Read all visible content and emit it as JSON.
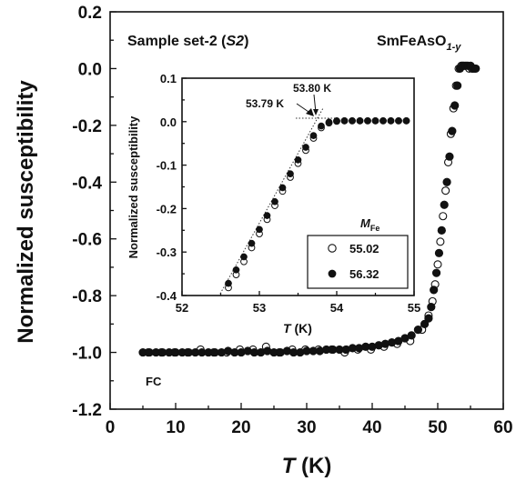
{
  "chart_data": {
    "type": "scatter",
    "title": "SmFeAsO",
    "title_subscript": "1-y",
    "subtitle_prefix": "Sample set-2 (",
    "subtitle_italic": "S2",
    "subtitle_suffix": ")",
    "ylabel": "Normalized susceptibility",
    "xlabel_var": "T",
    "xlabel_unit": " (K)",
    "annotation": "FC",
    "xlim": [
      0,
      60
    ],
    "ylim": [
      -1.2,
      0.2
    ],
    "xticks": [
      "0",
      "10",
      "20",
      "30",
      "40",
      "50",
      "60"
    ],
    "yticks": [
      "-1.2",
      "-1.0",
      "-0.8",
      "-0.6",
      "-0.4",
      "-0.2",
      "0.0",
      "0.2"
    ],
    "series": [
      {
        "name": "55.02",
        "marker": "open-circle",
        "color": "#111111",
        "x": [
          5.8,
          7.8,
          9.8,
          11.8,
          13.8,
          15.8,
          17.8,
          19.8,
          21.8,
          23.8,
          25.8,
          27.8,
          29.8,
          31.8,
          33.8,
          35.8,
          37.8,
          39.8,
          41.8,
          43.8,
          45.8,
          47.6,
          48.6,
          49.2,
          49.6,
          50.0,
          50.4,
          50.8,
          51.2,
          51.6,
          52.0,
          52.4,
          52.8,
          53.2,
          53.6,
          54.0,
          54.4,
          54.8,
          55.2,
          55.6
        ],
        "y": [
          -1.0,
          -1.0,
          -1.0,
          -1.0,
          -0.99,
          -1.0,
          -1.0,
          -0.99,
          -0.99,
          -0.98,
          -1.0,
          -0.99,
          -0.99,
          -0.99,
          -0.99,
          -1.0,
          -0.99,
          -0.99,
          -0.98,
          -0.97,
          -0.96,
          -0.92,
          -0.87,
          -0.82,
          -0.76,
          -0.69,
          -0.61,
          -0.52,
          -0.43,
          -0.33,
          -0.23,
          -0.14,
          -0.06,
          0.0,
          0.01,
          0.01,
          0.01,
          0.0,
          0.0,
          0.0
        ]
      },
      {
        "name": "56.32",
        "marker": "filled-circle",
        "color": "#111111",
        "x": [
          5.0,
          6.0,
          7.0,
          8.0,
          9.0,
          10.0,
          11.0,
          12.0,
          13.0,
          14.0,
          15.0,
          16.0,
          17.0,
          18.0,
          19.0,
          20.0,
          21.0,
          22.0,
          23.0,
          24.0,
          25.0,
          26.0,
          27.0,
          28.0,
          29.0,
          30.0,
          31.0,
          32.0,
          33.0,
          34.0,
          35.0,
          36.0,
          37.0,
          38.0,
          39.0,
          40.0,
          41.0,
          42.0,
          43.0,
          44.0,
          45.0,
          46.0,
          47.0,
          48.0,
          48.6,
          49.0,
          49.4,
          49.8,
          50.2,
          50.6,
          51.0,
          51.4,
          51.8,
          52.2,
          52.6,
          53.0,
          53.4,
          53.8,
          54.2,
          54.6,
          55.0,
          55.4,
          55.8
        ],
        "y": [
          -1.0,
          -1.0,
          -1.0,
          -1.0,
          -1.0,
          -1.0,
          -1.0,
          -1.0,
          -1.0,
          -1.0,
          -1.0,
          -1.0,
          -1.0,
          -0.995,
          -1.0,
          -1.0,
          -0.995,
          -1.0,
          -1.0,
          -0.995,
          -1.0,
          -1.0,
          -0.995,
          -1.0,
          -1.0,
          -0.995,
          -0.995,
          -0.995,
          -0.99,
          -0.99,
          -0.99,
          -0.99,
          -0.985,
          -0.985,
          -0.98,
          -0.98,
          -0.975,
          -0.97,
          -0.965,
          -0.96,
          -0.95,
          -0.94,
          -0.92,
          -0.9,
          -0.88,
          -0.84,
          -0.78,
          -0.72,
          -0.65,
          -0.57,
          -0.48,
          -0.4,
          -0.31,
          -0.22,
          -0.13,
          -0.06,
          0.0,
          0.01,
          0.01,
          0.01,
          0.01,
          0.0,
          0.0
        ]
      }
    ],
    "inset": {
      "xlabel_var": "T",
      "xlabel_unit": " (K)",
      "ylabel": "Normalized susceptibility",
      "xlim": [
        52,
        55
      ],
      "ylim": [
        -0.4,
        0.1
      ],
      "xticks": [
        "52",
        "53",
        "54",
        "55"
      ],
      "yticks": [
        "-0.4",
        "-0.3",
        "-0.2",
        "-0.1",
        "0.0",
        "0.1"
      ],
      "legend_title_var": "M",
      "legend_title_sub": "Fe",
      "legend_position": "bottom-right",
      "annotations": [
        "53.80 K",
        "53.79 K"
      ],
      "series": [
        {
          "name": "55.02",
          "marker": "open-circle",
          "x": [
            52.6,
            52.7,
            52.8,
            52.9,
            53.0,
            53.1,
            53.2,
            53.3,
            53.4,
            53.5,
            53.6,
            53.7,
            53.8,
            53.9,
            54.0,
            54.1,
            54.2,
            54.3,
            54.4,
            54.5,
            54.6,
            54.7,
            54.8,
            54.9
          ],
          "y": [
            -0.382,
            -0.352,
            -0.322,
            -0.29,
            -0.258,
            -0.225,
            -0.193,
            -0.16,
            -0.128,
            -0.096,
            -0.066,
            -0.038,
            -0.014,
            -0.003,
            0.001,
            0.002,
            0.002,
            0.002,
            0.002,
            0.002,
            0.002,
            0.002,
            0.002,
            0.002
          ]
        },
        {
          "name": "56.32",
          "marker": "filled-circle",
          "x": [
            52.6,
            52.7,
            52.8,
            52.9,
            53.0,
            53.1,
            53.2,
            53.3,
            53.4,
            53.5,
            53.6,
            53.7,
            53.8,
            53.9,
            54.0,
            54.1,
            54.2,
            54.3,
            54.4,
            54.5,
            54.6,
            54.7,
            54.8,
            54.9
          ],
          "y": [
            -0.372,
            -0.341,
            -0.311,
            -0.28,
            -0.248,
            -0.216,
            -0.184,
            -0.152,
            -0.12,
            -0.088,
            -0.059,
            -0.032,
            -0.01,
            -0.001,
            0.002,
            0.002,
            0.002,
            0.002,
            0.002,
            0.002,
            0.002,
            0.002,
            0.002,
            0.002
          ]
        }
      ]
    }
  }
}
